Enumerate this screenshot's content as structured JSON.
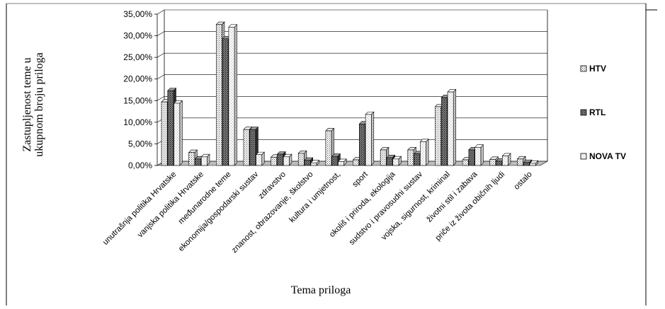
{
  "chart_data": {
    "type": "bar",
    "title": "",
    "xlabel": "Tema priloga",
    "ylabel_lines": [
      "Zastupljenost teme u",
      "ukupnom broju priloga"
    ],
    "ylim": [
      0,
      35
    ],
    "yticks": [
      "0,00%",
      "5,00%",
      "10,00%",
      "15,00%",
      "20,00%",
      "25,00%",
      "30,00%",
      "35,00%"
    ],
    "legend_position": "right",
    "grid": true,
    "categories": [
      "unutrašnja politika Hrvatske",
      "vanjska politika Hrvatske",
      "međunarodne teme",
      "ekonomija/gospodarski sustav",
      "zdravstvo",
      "znanost, obrazovanje, školstvo",
      "kultura i umjetnost,",
      "sport",
      "okoliš i priroda, ekologija",
      "sudstvo i pravosudni sustav",
      "vojska, sigurnost, kriminal",
      "životni stil i zabava",
      "priče iz života običnih ljudi",
      "ostalo"
    ],
    "series": [
      {
        "name": "HTV",
        "pattern": "dots",
        "values": [
          14.7,
          3.0,
          32.6,
          8.3,
          1.9,
          2.8,
          8.0,
          1.3,
          3.6,
          3.6,
          13.6,
          1.3,
          1.4,
          1.5
        ]
      },
      {
        "name": "RTL",
        "pattern": "dark",
        "values": [
          17.3,
          1.5,
          29.3,
          8.3,
          2.6,
          1.2,
          2.1,
          9.6,
          1.8,
          2.7,
          15.7,
          3.6,
          1.0,
          0.7
        ]
      },
      {
        "name": "NOVA TV",
        "pattern": "light",
        "values": [
          14.4,
          2.0,
          32.0,
          2.5,
          2.0,
          0.6,
          0.9,
          11.8,
          1.5,
          5.5,
          17.0,
          4.2,
          2.2,
          0.5
        ]
      }
    ]
  }
}
